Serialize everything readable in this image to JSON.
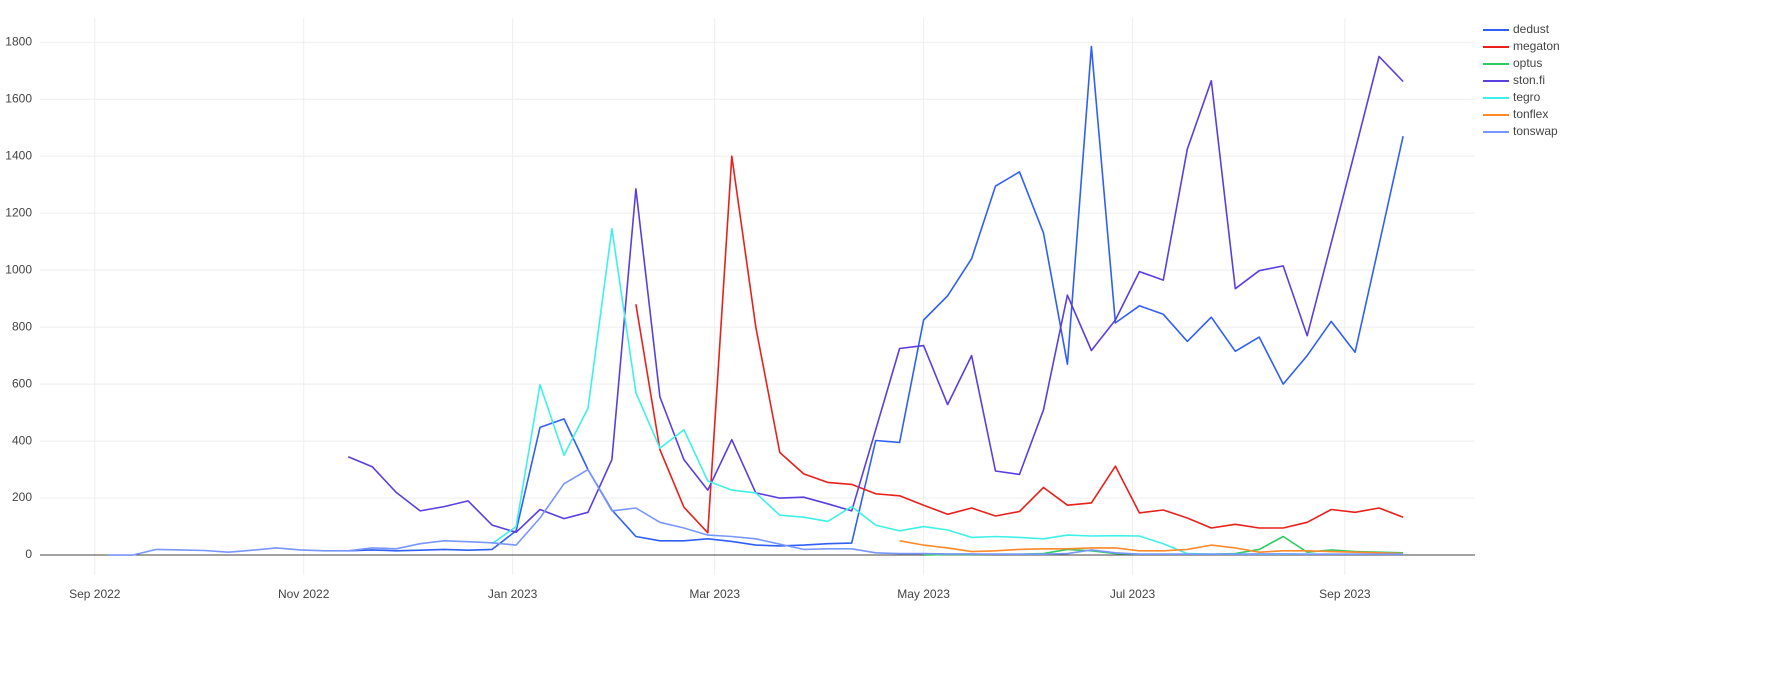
{
  "chart_data": {
    "type": "line",
    "x": [
      "2022-09-05",
      "2022-09-12",
      "2022-09-19",
      "2022-09-26",
      "2022-10-03",
      "2022-10-10",
      "2022-10-17",
      "2022-10-24",
      "2022-10-31",
      "2022-11-07",
      "2022-11-14",
      "2022-11-21",
      "2022-11-28",
      "2022-12-05",
      "2022-12-12",
      "2022-12-19",
      "2022-12-26",
      "2023-01-02",
      "2023-01-09",
      "2023-01-16",
      "2023-01-23",
      "2023-01-30",
      "2023-02-06",
      "2023-02-13",
      "2023-02-20",
      "2023-02-27",
      "2023-03-06",
      "2023-03-13",
      "2023-03-20",
      "2023-03-27",
      "2023-04-03",
      "2023-04-10",
      "2023-04-17",
      "2023-04-24",
      "2023-05-01",
      "2023-05-08",
      "2023-05-15",
      "2023-05-22",
      "2023-05-29",
      "2023-06-05",
      "2023-06-12",
      "2023-06-19",
      "2023-06-26",
      "2023-07-03",
      "2023-07-10",
      "2023-07-17",
      "2023-07-24",
      "2023-07-31",
      "2023-08-07",
      "2023-08-14",
      "2023-08-21",
      "2023-08-28",
      "2023-09-04",
      "2023-09-11",
      "2023-09-18"
    ],
    "series": [
      {
        "name": "dedust",
        "color": "#2f5ff5",
        "values": [
          null,
          null,
          null,
          null,
          null,
          null,
          null,
          null,
          null,
          null,
          15,
          18,
          15,
          17,
          20,
          17,
          20,
          85,
          448,
          478,
          300,
          158,
          65,
          50,
          50,
          57,
          48,
          35,
          32,
          35,
          40,
          42,
          402,
          395,
          825,
          910,
          1040,
          1295,
          1345,
          1130,
          670,
          1785,
          815,
          875,
          845,
          750,
          835,
          715,
          765,
          600,
          700,
          820,
          712,
          1090,
          1470
        ]
      },
      {
        "name": "megaton",
        "color": "#e8201c",
        "values": [
          null,
          null,
          null,
          null,
          null,
          null,
          null,
          null,
          null,
          null,
          null,
          null,
          null,
          null,
          null,
          null,
          null,
          null,
          null,
          null,
          null,
          null,
          880,
          370,
          168,
          78,
          1400,
          800,
          360,
          285,
          255,
          248,
          215,
          208,
          175,
          143,
          165,
          137,
          153,
          237,
          175,
          183,
          312,
          148,
          158,
          130,
          95,
          108,
          95,
          95,
          115,
          160,
          150,
          165,
          133
        ]
      },
      {
        "name": "optus",
        "color": "#2ecc60",
        "values": [
          null,
          null,
          null,
          null,
          null,
          null,
          null,
          null,
          null,
          null,
          null,
          null,
          null,
          null,
          null,
          null,
          null,
          null,
          null,
          null,
          null,
          null,
          null,
          null,
          null,
          null,
          null,
          null,
          null,
          null,
          null,
          null,
          null,
          null,
          0,
          2,
          2,
          3,
          3,
          5,
          20,
          15,
          5,
          3,
          3,
          3,
          3,
          5,
          20,
          65,
          10,
          18,
          12,
          10,
          8
        ]
      },
      {
        "name": "ston.fi",
        "color": "#5a3ee0",
        "values": [
          null,
          null,
          null,
          null,
          null,
          null,
          null,
          null,
          null,
          null,
          345,
          310,
          220,
          155,
          170,
          190,
          105,
          80,
          160,
          128,
          150,
          335,
          1285,
          555,
          335,
          228,
          405,
          218,
          200,
          203,
          180,
          155,
          440,
          725,
          735,
          528,
          700,
          295,
          283,
          510,
          912,
          718,
          825,
          995,
          965,
          1425,
          1665,
          935,
          998,
          1015,
          770,
          1095,
          1420,
          1750,
          1662
        ]
      },
      {
        "name": "tegro",
        "color": "#3ef0e8",
        "values": [
          null,
          null,
          null,
          null,
          null,
          null,
          null,
          null,
          null,
          null,
          null,
          null,
          null,
          null,
          null,
          null,
          40,
          100,
          598,
          350,
          515,
          1145,
          570,
          375,
          440,
          260,
          228,
          218,
          140,
          133,
          118,
          170,
          105,
          85,
          100,
          88,
          62,
          65,
          62,
          57,
          70,
          67,
          68,
          67,
          40,
          5,
          3,
          3,
          3,
          3,
          3,
          3,
          3,
          3,
          3
        ]
      },
      {
        "name": "tonflex",
        "color": "#ff8a2a",
        "values": [
          null,
          null,
          null,
          null,
          null,
          null,
          null,
          null,
          null,
          null,
          null,
          null,
          null,
          null,
          null,
          null,
          null,
          null,
          null,
          null,
          null,
          null,
          null,
          null,
          null,
          null,
          null,
          null,
          null,
          null,
          null,
          null,
          null,
          50,
          35,
          25,
          12,
          15,
          20,
          22,
          22,
          25,
          25,
          15,
          15,
          20,
          35,
          25,
          10,
          15,
          15,
          12,
          10,
          8,
          5
        ]
      },
      {
        "name": "tonswap",
        "color": "#7896ff",
        "values": [
          0,
          0,
          20,
          18,
          16,
          10,
          17,
          25,
          18,
          15,
          15,
          25,
          22,
          40,
          50,
          47,
          43,
          35,
          130,
          250,
          300,
          155,
          165,
          115,
          95,
          70,
          65,
          57,
          38,
          20,
          22,
          22,
          8,
          5,
          5,
          4,
          4,
          3,
          3,
          3,
          5,
          18,
          8,
          3,
          3,
          3,
          3,
          3,
          4,
          4,
          3,
          3,
          3,
          3,
          3
        ]
      }
    ],
    "xlim": [
      "2022-08-16",
      "2023-10-09"
    ],
    "xticks": [
      {
        "value": "2022-09-01",
        "label": "Sep 2022"
      },
      {
        "value": "2022-11-01",
        "label": "Nov 2022"
      },
      {
        "value": "2023-01-01",
        "label": "Jan 2023"
      },
      {
        "value": "2023-03-01",
        "label": "Mar 2023"
      },
      {
        "value": "2023-05-01",
        "label": "May 2023"
      },
      {
        "value": "2023-07-01",
        "label": "Jul 2023"
      },
      {
        "value": "2023-09-01",
        "label": "Sep 2023"
      }
    ],
    "ylim": [
      -70,
      1885
    ],
    "yticks": [
      0,
      200,
      400,
      600,
      800,
      1000,
      1200,
      1400,
      1600,
      1800
    ],
    "grid": true,
    "legend": "top-right"
  }
}
